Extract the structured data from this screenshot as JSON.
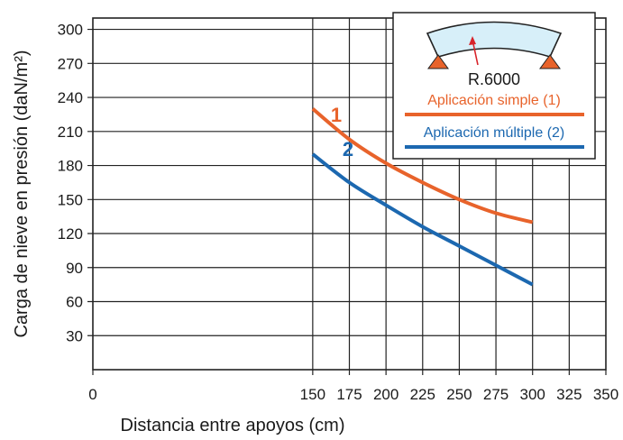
{
  "chart_data": {
    "type": "line",
    "xlabel": "Distancia entre apoyos  (cm)",
    "ylabel": "Carga de nieve en presión  (daN/m²)",
    "xlim": [
      0,
      350
    ],
    "ylim": [
      0,
      310
    ],
    "x_ticks": [
      0,
      150,
      175,
      200,
      225,
      250,
      275,
      300,
      325,
      350
    ],
    "y_ticks": [
      30,
      60,
      90,
      120,
      150,
      180,
      210,
      240,
      270,
      300
    ],
    "grid": true,
    "legend_position": "top-right",
    "legend_diagram_label": "R.6000",
    "series": [
      {
        "name": "Aplicación simple (1)",
        "label": "1",
        "color": "#e8632b",
        "x": [
          150,
          175,
          200,
          225,
          250,
          275,
          300
        ],
        "y": [
          230,
          203,
          182,
          165,
          150,
          138,
          130
        ]
      },
      {
        "name": "Aplicación múltiple (2)",
        "label": "2",
        "color": "#1c68b0",
        "x": [
          150,
          175,
          200,
          225,
          250,
          275,
          300
        ],
        "y": [
          190,
          165,
          145,
          126,
          109,
          92,
          75
        ]
      }
    ]
  }
}
